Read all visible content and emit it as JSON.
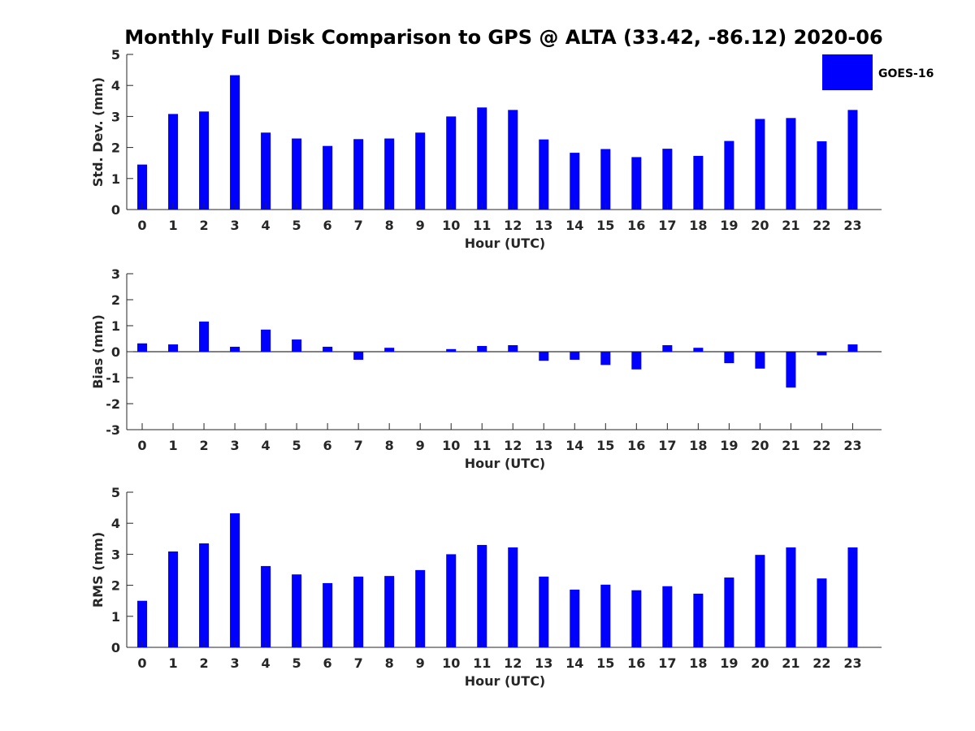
{
  "title": "Monthly Full Disk Comparison to GPS @ ALTA (33.42, -86.12) 2020-06",
  "legend": {
    "label": "GOES-16",
    "color": "#0000ff"
  },
  "chart_data": [
    {
      "type": "bar",
      "categories": [
        "0",
        "1",
        "2",
        "3",
        "4",
        "5",
        "6",
        "7",
        "8",
        "9",
        "10",
        "11",
        "12",
        "13",
        "14",
        "15",
        "16",
        "17",
        "18",
        "19",
        "20",
        "21",
        "22",
        "23"
      ],
      "series": [
        {
          "name": "GOES-16",
          "values": [
            1.45,
            3.08,
            3.16,
            4.33,
            2.48,
            2.29,
            2.05,
            2.27,
            2.29,
            2.48,
            3.0,
            3.29,
            3.21,
            2.26,
            1.83,
            1.95,
            1.69,
            1.96,
            1.73,
            2.21,
            2.92,
            2.95,
            2.2,
            3.21
          ]
        }
      ],
      "xlabel": "Hour (UTC)",
      "ylabel": "Std. Dev. (mm)",
      "ylim": [
        0,
        5
      ],
      "yticks": [
        "0",
        "1",
        "2",
        "3",
        "4",
        "5"
      ],
      "legend": "top-right",
      "grid": false
    },
    {
      "type": "bar",
      "categories": [
        "0",
        "1",
        "2",
        "3",
        "4",
        "5",
        "6",
        "7",
        "8",
        "9",
        "10",
        "11",
        "12",
        "13",
        "14",
        "15",
        "16",
        "17",
        "18",
        "19",
        "20",
        "21",
        "22",
        "23"
      ],
      "series": [
        {
          "name": "GOES-16",
          "values": [
            0.32,
            0.28,
            1.16,
            0.19,
            0.85,
            0.47,
            0.19,
            -0.31,
            0.15,
            0.0,
            0.1,
            0.22,
            0.25,
            -0.35,
            -0.31,
            -0.51,
            -0.68,
            0.25,
            0.15,
            -0.44,
            -0.65,
            -1.38,
            -0.14,
            0.28
          ]
        }
      ],
      "xlabel": "Hour (UTC)",
      "ylabel": "Bias (mm)",
      "ylim": [
        -3,
        3
      ],
      "yticks": [
        "-3",
        "-2",
        "-1",
        "0",
        "1",
        "2",
        "3"
      ],
      "zero_line": true,
      "grid": false
    },
    {
      "type": "bar",
      "categories": [
        "0",
        "1",
        "2",
        "3",
        "4",
        "5",
        "6",
        "7",
        "8",
        "9",
        "10",
        "11",
        "12",
        "13",
        "14",
        "15",
        "16",
        "17",
        "18",
        "19",
        "20",
        "21",
        "22",
        "23"
      ],
      "series": [
        {
          "name": "GOES-16",
          "values": [
            1.5,
            3.09,
            3.35,
            4.32,
            2.62,
            2.35,
            2.07,
            2.28,
            2.3,
            2.49,
            3.0,
            3.3,
            3.22,
            2.28,
            1.86,
            2.02,
            1.84,
            1.97,
            1.73,
            2.25,
            2.98,
            3.22,
            2.22,
            3.22
          ]
        }
      ],
      "xlabel": "Hour (UTC)",
      "ylabel": "RMS (mm)",
      "ylim": [
        0,
        5
      ],
      "yticks": [
        "0",
        "1",
        "2",
        "3",
        "4",
        "5"
      ],
      "grid": false
    }
  ]
}
